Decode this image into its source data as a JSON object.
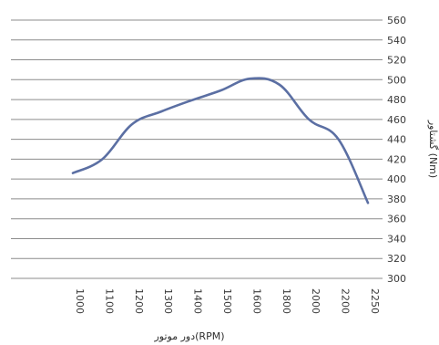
{
  "chart_data": {
    "type": "line",
    "title": "",
    "xlabel": "دور موتور(RPM)",
    "ylabel": "گشتاور (Nm)",
    "categories": [
      "1000",
      "1100",
      "1200",
      "1300",
      "1400",
      "1500",
      "1600",
      "1800",
      "2000",
      "2200",
      "2250"
    ],
    "series": [
      {
        "values": [
          406,
          420,
          455,
          468,
          479,
          489,
          501,
          495,
          460,
          440,
          376
        ],
        "color": "#5b6fa3"
      }
    ],
    "ylim": [
      300,
      560
    ],
    "ystep": 20,
    "y_tick_labels": [
      "300",
      "320",
      "340",
      "360",
      "380",
      "400",
      "420",
      "440",
      "460",
      "480",
      "500",
      "520",
      "540",
      "560"
    ],
    "grid": true,
    "legend": "none",
    "y_axis_side": "right",
    "x_tick_orientation": "vertical"
  }
}
